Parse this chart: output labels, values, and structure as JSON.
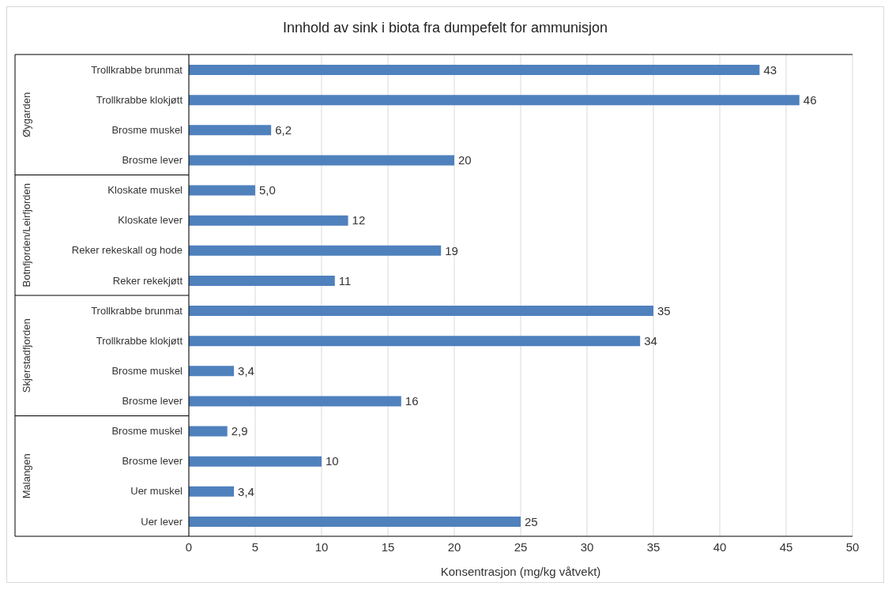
{
  "chart_data": {
    "type": "bar",
    "orientation": "horizontal",
    "title": "Innhold av sink i biota fra dumpefelt for ammunisjon",
    "xlabel": "Konsentrasjon (mg/kg våtvekt)",
    "categories": [
      "Trollkrabbe brunmat",
      "Trollkrabbe klokjøtt",
      "Brosme muskel",
      "Brosme lever",
      "Kloskate muskel",
      "Kloskate lever",
      "Reker rekeskall og hode",
      "Reker rekekjøtt",
      "Trollkrabbe brunmat",
      "Trollkrabbe klokjøtt",
      "Brosme muskel",
      "Brosme lever",
      "Brosme muskel",
      "Brosme lever",
      "Uer muskel",
      "Uer lever"
    ],
    "values": [
      43,
      46,
      6.2,
      20,
      5.0,
      12,
      19,
      11,
      35,
      34,
      3.4,
      16,
      2.9,
      10,
      3.4,
      25
    ],
    "value_labels": [
      "43",
      "46",
      "6,2",
      "20",
      "5,0",
      "12",
      "19",
      "11",
      "35",
      "34",
      "3,4",
      "16",
      "2,9",
      "10",
      "3,4",
      "25"
    ],
    "color": "#4f81bd",
    "annotations": [
      "Øygarden",
      "Botnfjorden/Leirfjorden",
      "Skjerstadfjorden",
      "Malangen"
    ],
    "xlim": [
      0,
      50
    ],
    "xticks": [
      0,
      5,
      10,
      15,
      20,
      25,
      30,
      35,
      40,
      45,
      50
    ],
    "grid": "x",
    "legend": false
  }
}
